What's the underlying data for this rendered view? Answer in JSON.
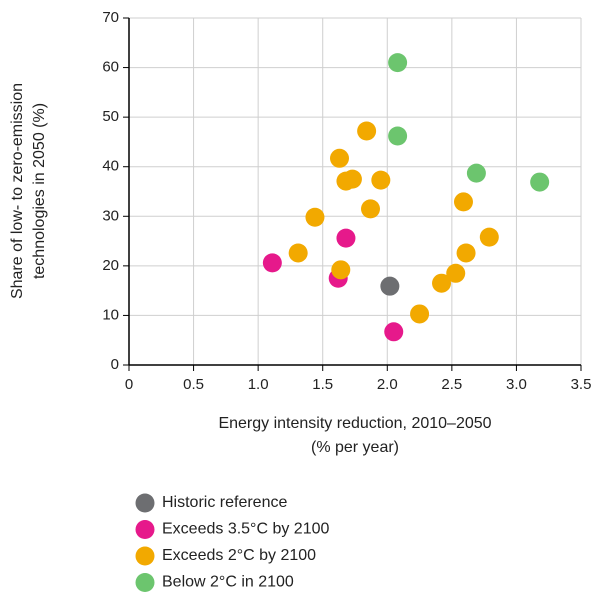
{
  "chart_data": {
    "type": "scatter",
    "xlabel": [
      "Energy intensity reduction, 2010–2050",
      "(% per year)"
    ],
    "ylabel": [
      "Share of low- to zero-emission",
      "technologies in 2050 (%)"
    ],
    "xlim": [
      0,
      3.5
    ],
    "ylim": [
      0,
      70
    ],
    "xticks": [
      0,
      0.5,
      {
        "value": 1,
        "label": "1.0"
      },
      1.5,
      {
        "value": 2,
        "label": "2.0"
      },
      2.5,
      {
        "value": 3,
        "label": "3.0"
      },
      3.5
    ],
    "yticks": [
      0,
      10,
      20,
      30,
      40,
      50,
      60,
      70
    ],
    "grid": true,
    "series": [
      {
        "name": "Historic reference",
        "color": "#6d6e71",
        "x": [
          2.02
        ],
        "values": [
          15.9
        ]
      },
      {
        "name": "Exceeds 3.5°C by 2100",
        "color": "#e6198b",
        "x": [
          1.11,
          1.68,
          1.62,
          2.05
        ],
        "values": [
          20.6,
          25.6,
          17.5,
          6.7
        ]
      },
      {
        "name": "Exceeds 2°C by 2100",
        "color": "#f2a900",
        "x": [
          1.31,
          1.44,
          1.64,
          1.63,
          1.68,
          1.73,
          1.84,
          1.87,
          1.95,
          2.25,
          2.42,
          2.53,
          2.59,
          2.61,
          2.79
        ],
        "values": [
          22.6,
          29.8,
          19.2,
          41.7,
          37.1,
          37.5,
          47.2,
          31.5,
          37.3,
          10.3,
          16.5,
          18.5,
          32.9,
          22.6,
          25.8
        ]
      },
      {
        "name": "Below 2°C in 2100",
        "color": "#6cc56e",
        "x": [
          2.08,
          2.08,
          2.69,
          3.18
        ],
        "values": [
          61,
          46.2,
          38.7,
          36.9
        ]
      }
    ]
  }
}
